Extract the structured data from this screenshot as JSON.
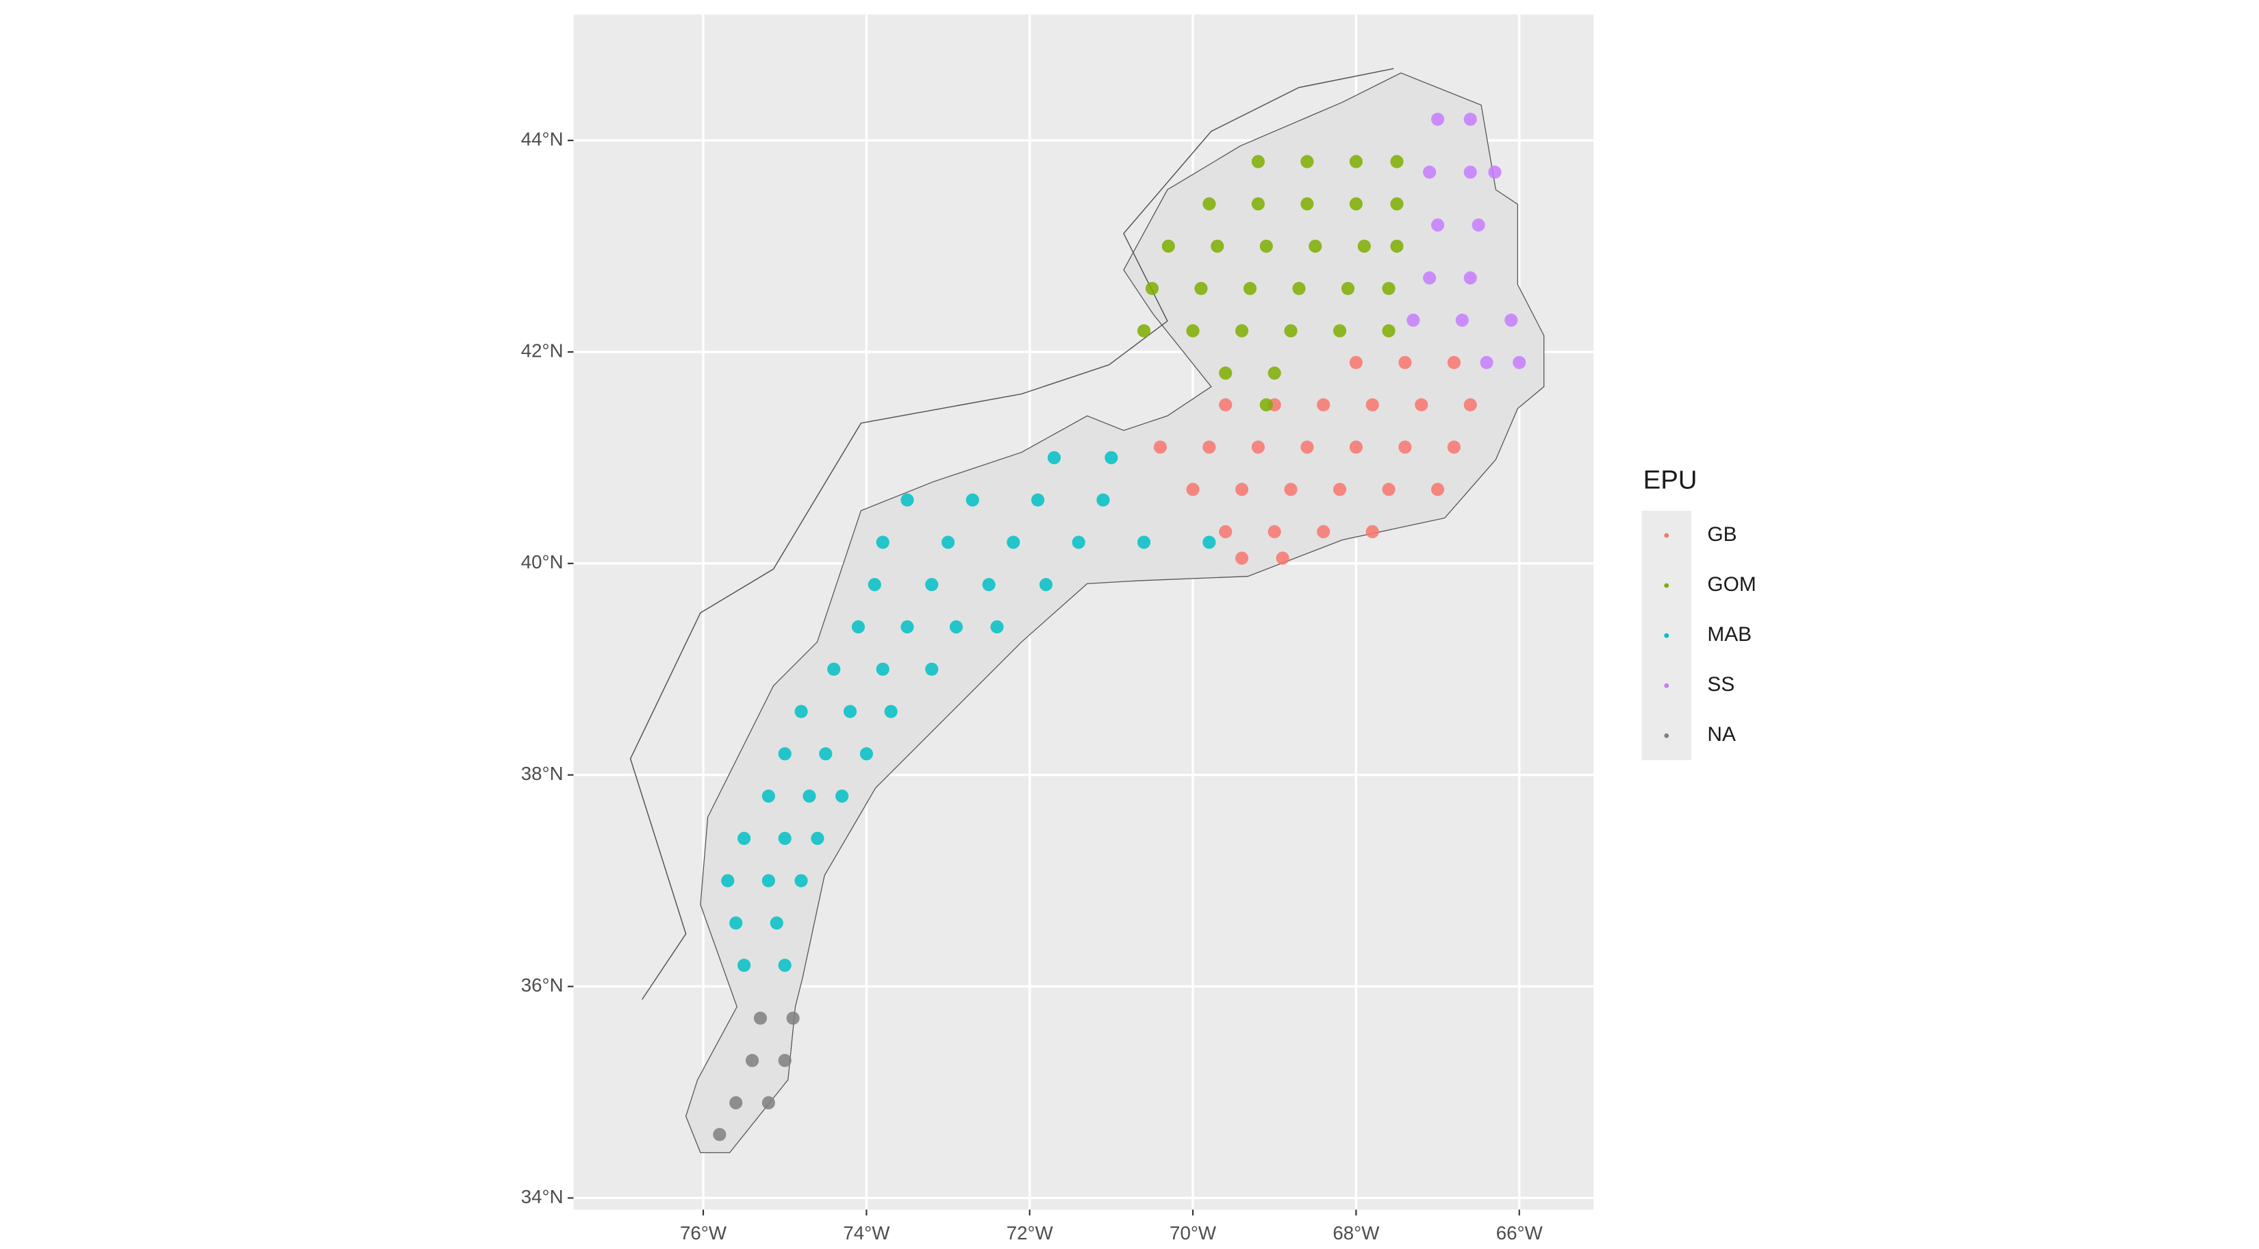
{
  "chart_data": {
    "type": "scatter",
    "xlim": [
      -77.59,
      -65.09
    ],
    "ylim": [
      33.89,
      45.19
    ],
    "xticks": [
      {
        "value": -76,
        "label": "76°W"
      },
      {
        "value": -74,
        "label": "74°W"
      },
      {
        "value": -72,
        "label": "72°W"
      },
      {
        "value": -70,
        "label": "70°W"
      },
      {
        "value": -68,
        "label": "68°W"
      },
      {
        "value": -66,
        "label": "66°W"
      }
    ],
    "yticks": [
      {
        "value": 34,
        "label": "34°N"
      },
      {
        "value": 36,
        "label": "36°N"
      },
      {
        "value": 38,
        "label": "38°N"
      },
      {
        "value": 40,
        "label": "40°N"
      },
      {
        "value": 42,
        "label": "42°N"
      },
      {
        "value": 44,
        "label": "44°N"
      }
    ],
    "grid": true,
    "legend_title": "EPU",
    "legend_position": "right",
    "series": [
      {
        "name": "GB",
        "color": "#F8766D",
        "x": [
          -68.0,
          -67.4,
          -66.8,
          -69.6,
          -69.0,
          -68.4,
          -67.8,
          -67.2,
          -66.6,
          -70.4,
          -69.8,
          -69.2,
          -68.6,
          -68.0,
          -67.4,
          -66.8,
          -70.0,
          -69.4,
          -68.8,
          -68.2,
          -67.6,
          -67.0,
          -69.6,
          -69.0,
          -68.4,
          -67.8,
          -69.4,
          -68.9
        ],
        "y": [
          41.9,
          41.9,
          41.9,
          41.5,
          41.5,
          41.5,
          41.5,
          41.5,
          41.5,
          41.1,
          41.1,
          41.1,
          41.1,
          41.1,
          41.1,
          41.1,
          40.7,
          40.7,
          40.7,
          40.7,
          40.7,
          40.7,
          40.3,
          40.3,
          40.3,
          40.3,
          40.05,
          40.05
        ]
      },
      {
        "name": "GOM",
        "color": "#7CAE00",
        "x": [
          -69.2,
          -68.6,
          -68.0,
          -67.5,
          -69.8,
          -69.2,
          -68.6,
          -68.0,
          -67.5,
          -70.3,
          -69.7,
          -69.1,
          -68.5,
          -67.9,
          -67.5,
          -70.5,
          -69.9,
          -69.3,
          -68.7,
          -68.1,
          -67.6,
          -70.6,
          -70.0,
          -69.4,
          -68.8,
          -68.2,
          -67.6,
          -69.6,
          -69.0,
          -69.1
        ],
        "y": [
          43.8,
          43.8,
          43.8,
          43.8,
          43.4,
          43.4,
          43.4,
          43.4,
          43.4,
          43.0,
          43.0,
          43.0,
          43.0,
          43.0,
          43.0,
          42.6,
          42.6,
          42.6,
          42.6,
          42.6,
          42.6,
          42.2,
          42.2,
          42.2,
          42.2,
          42.2,
          42.2,
          41.8,
          41.8,
          41.5
        ]
      },
      {
        "name": "MAB",
        "color": "#00BFC4",
        "x": [
          -71.7,
          -71.0,
          -73.5,
          -72.7,
          -71.9,
          -71.1,
          -73.8,
          -73.0,
          -72.2,
          -71.4,
          -70.6,
          -69.8,
          -73.9,
          -73.2,
          -72.5,
          -71.8,
          -74.1,
          -73.5,
          -72.9,
          -72.4,
          -74.4,
          -73.8,
          -73.2,
          -74.8,
          -74.2,
          -73.7,
          -75.0,
          -74.5,
          -74.0,
          -75.2,
          -74.7,
          -74.3,
          -75.5,
          -75.0,
          -74.6,
          -75.7,
          -75.2,
          -74.8,
          -75.6,
          -75.1,
          -75.5,
          -75.0
        ],
        "y": [
          41.0,
          41.0,
          40.6,
          40.6,
          40.6,
          40.6,
          40.2,
          40.2,
          40.2,
          40.2,
          40.2,
          40.2,
          39.8,
          39.8,
          39.8,
          39.8,
          39.4,
          39.4,
          39.4,
          39.4,
          39.0,
          39.0,
          39.0,
          38.6,
          38.6,
          38.6,
          38.2,
          38.2,
          38.2,
          37.8,
          37.8,
          37.8,
          37.4,
          37.4,
          37.4,
          37.0,
          37.0,
          37.0,
          36.6,
          36.6,
          36.2,
          36.2
        ]
      },
      {
        "name": "SS",
        "color": "#C77CFF",
        "x": [
          -67.0,
          -66.6,
          -67.1,
          -66.6,
          -66.3,
          -67.0,
          -66.5,
          -67.1,
          -66.6,
          -67.3,
          -66.7,
          -66.1,
          -66.4,
          -66.0
        ],
        "y": [
          44.2,
          44.2,
          43.7,
          43.7,
          43.7,
          43.2,
          43.2,
          42.7,
          42.7,
          42.3,
          42.3,
          42.3,
          41.9,
          41.9
        ]
      },
      {
        "name": "NA",
        "color": "#7F7F7F",
        "x": [
          -75.3,
          -74.9,
          -75.4,
          -75.0,
          -75.6,
          -75.2,
          -75.8
        ],
        "y": [
          35.7,
          35.7,
          35.3,
          35.3,
          34.9,
          34.9,
          34.6
        ]
      }
    ]
  }
}
